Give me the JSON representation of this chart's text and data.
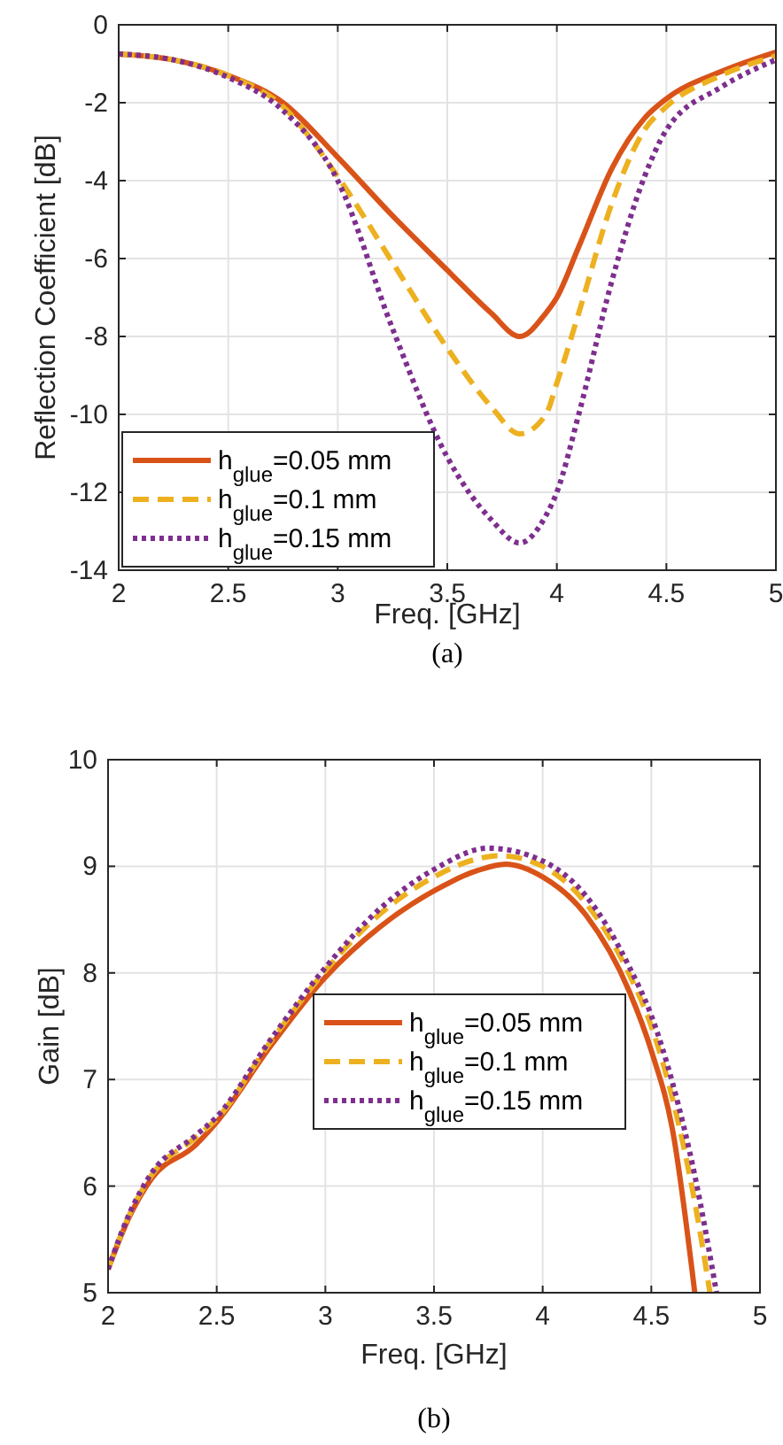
{
  "chart_data": [
    {
      "type": "line",
      "xlabel": "Freq. [GHz]",
      "ylabel": "Reflection Coefficient [dB]",
      "annotations": [
        "(a)"
      ],
      "xlim": [
        2,
        5
      ],
      "xticks": [
        2,
        2.5,
        3,
        3.5,
        4,
        4.5,
        5
      ],
      "ylim": [
        -14,
        0
      ],
      "yticks": [
        -14,
        -12,
        -10,
        -8,
        -6,
        -4,
        -2,
        0
      ],
      "grid": true,
      "legend": "bottom left",
      "series": [
        {
          "name": "h$_{glue}$=0.05 mm",
          "color": "#d95319",
          "line_style": "solid",
          "x": [
            2,
            2.25,
            2.5,
            2.75,
            3,
            3.25,
            3.5,
            3.7,
            3.83,
            3.95,
            4,
            4.1,
            4.25,
            4.4,
            4.5,
            4.75,
            5
          ],
          "values": [
            -0.75,
            -0.9,
            -1.3,
            -2.0,
            -3.4,
            -4.9,
            -6.3,
            -7.4,
            -8.0,
            -7.4,
            -7.0,
            -5.7,
            -3.7,
            -2.4,
            -1.9,
            -1.2,
            -0.7
          ]
        },
        {
          "name": "h$_{glue}$=0.1 mm",
          "color": "#edb120",
          "line_style": "dashed",
          "x": [
            2,
            2.25,
            2.5,
            2.75,
            3,
            3.25,
            3.5,
            3.7,
            3.83,
            3.95,
            4,
            4.1,
            4.25,
            4.4,
            4.5,
            4.75,
            5
          ],
          "values": [
            -0.75,
            -0.9,
            -1.3,
            -2.1,
            -3.9,
            -6.1,
            -8.3,
            -9.8,
            -10.5,
            -10.0,
            -9.2,
            -7.4,
            -4.6,
            -2.7,
            -2.1,
            -1.3,
            -0.8
          ]
        },
        {
          "name": "h$_{glue}$=0.15 mm",
          "color": "#7e2f8e",
          "line_style": "dotted",
          "x": [
            2,
            2.25,
            2.5,
            2.75,
            3,
            3.25,
            3.5,
            3.7,
            3.83,
            3.95,
            4,
            4.1,
            4.25,
            4.4,
            4.5,
            4.75,
            5
          ],
          "values": [
            -0.75,
            -0.9,
            -1.35,
            -2.2,
            -4.0,
            -7.8,
            -11.1,
            -12.7,
            -13.3,
            -12.6,
            -12.0,
            -10.0,
            -6.6,
            -3.9,
            -2.7,
            -1.6,
            -0.9
          ]
        }
      ]
    },
    {
      "type": "line",
      "xlabel": "Freq. [GHz]",
      "ylabel": "Gain [dB]",
      "annotations": [
        "(b)"
      ],
      "xlim": [
        2,
        5
      ],
      "xticks": [
        2,
        2.5,
        3,
        3.5,
        4,
        4.5,
        5
      ],
      "ylim": [
        5,
        10
      ],
      "yticks": [
        5,
        6,
        7,
        8,
        9,
        10
      ],
      "grid": true,
      "legend": "center",
      "series": [
        {
          "name": "h$_{glue}$=0.05 mm",
          "color": "#d95319",
          "line_style": "solid",
          "x": [
            2,
            2.1,
            2.2,
            2.4,
            2.5,
            2.75,
            3,
            3.25,
            3.5,
            3.7,
            3.83,
            4,
            4.2,
            4.4,
            4.5,
            4.6,
            4.7
          ],
          "values": [
            5.22,
            5.72,
            6.07,
            6.38,
            6.6,
            7.32,
            7.96,
            8.43,
            8.77,
            8.96,
            9.02,
            8.9,
            8.54,
            7.82,
            7.27,
            6.5,
            5.0
          ]
        },
        {
          "name": "h$_{glue}$=0.1 mm",
          "color": "#edb120",
          "line_style": "dashed",
          "x": [
            2,
            2.1,
            2.2,
            2.4,
            2.5,
            2.75,
            3,
            3.25,
            3.5,
            3.7,
            3.8,
            4,
            4.2,
            4.4,
            4.5,
            4.6,
            4.7,
            4.77
          ],
          "values": [
            5.22,
            5.74,
            6.1,
            6.45,
            6.63,
            7.36,
            8.02,
            8.55,
            8.9,
            9.07,
            9.1,
            9.0,
            8.65,
            7.98,
            7.5,
            6.8,
            5.85,
            5.0
          ]
        },
        {
          "name": "h$_{glue}$=0.15 mm",
          "color": "#7e2f8e",
          "line_style": "dotted",
          "x": [
            2,
            2.1,
            2.2,
            2.4,
            2.5,
            2.75,
            3,
            3.25,
            3.5,
            3.75,
            4,
            4.2,
            4.4,
            4.5,
            4.6,
            4.7,
            4.8
          ],
          "values": [
            5.22,
            5.75,
            6.12,
            6.47,
            6.65,
            7.38,
            8.05,
            8.6,
            8.97,
            9.17,
            9.05,
            8.72,
            8.05,
            7.6,
            6.95,
            6.1,
            5.0
          ]
        }
      ]
    }
  ]
}
